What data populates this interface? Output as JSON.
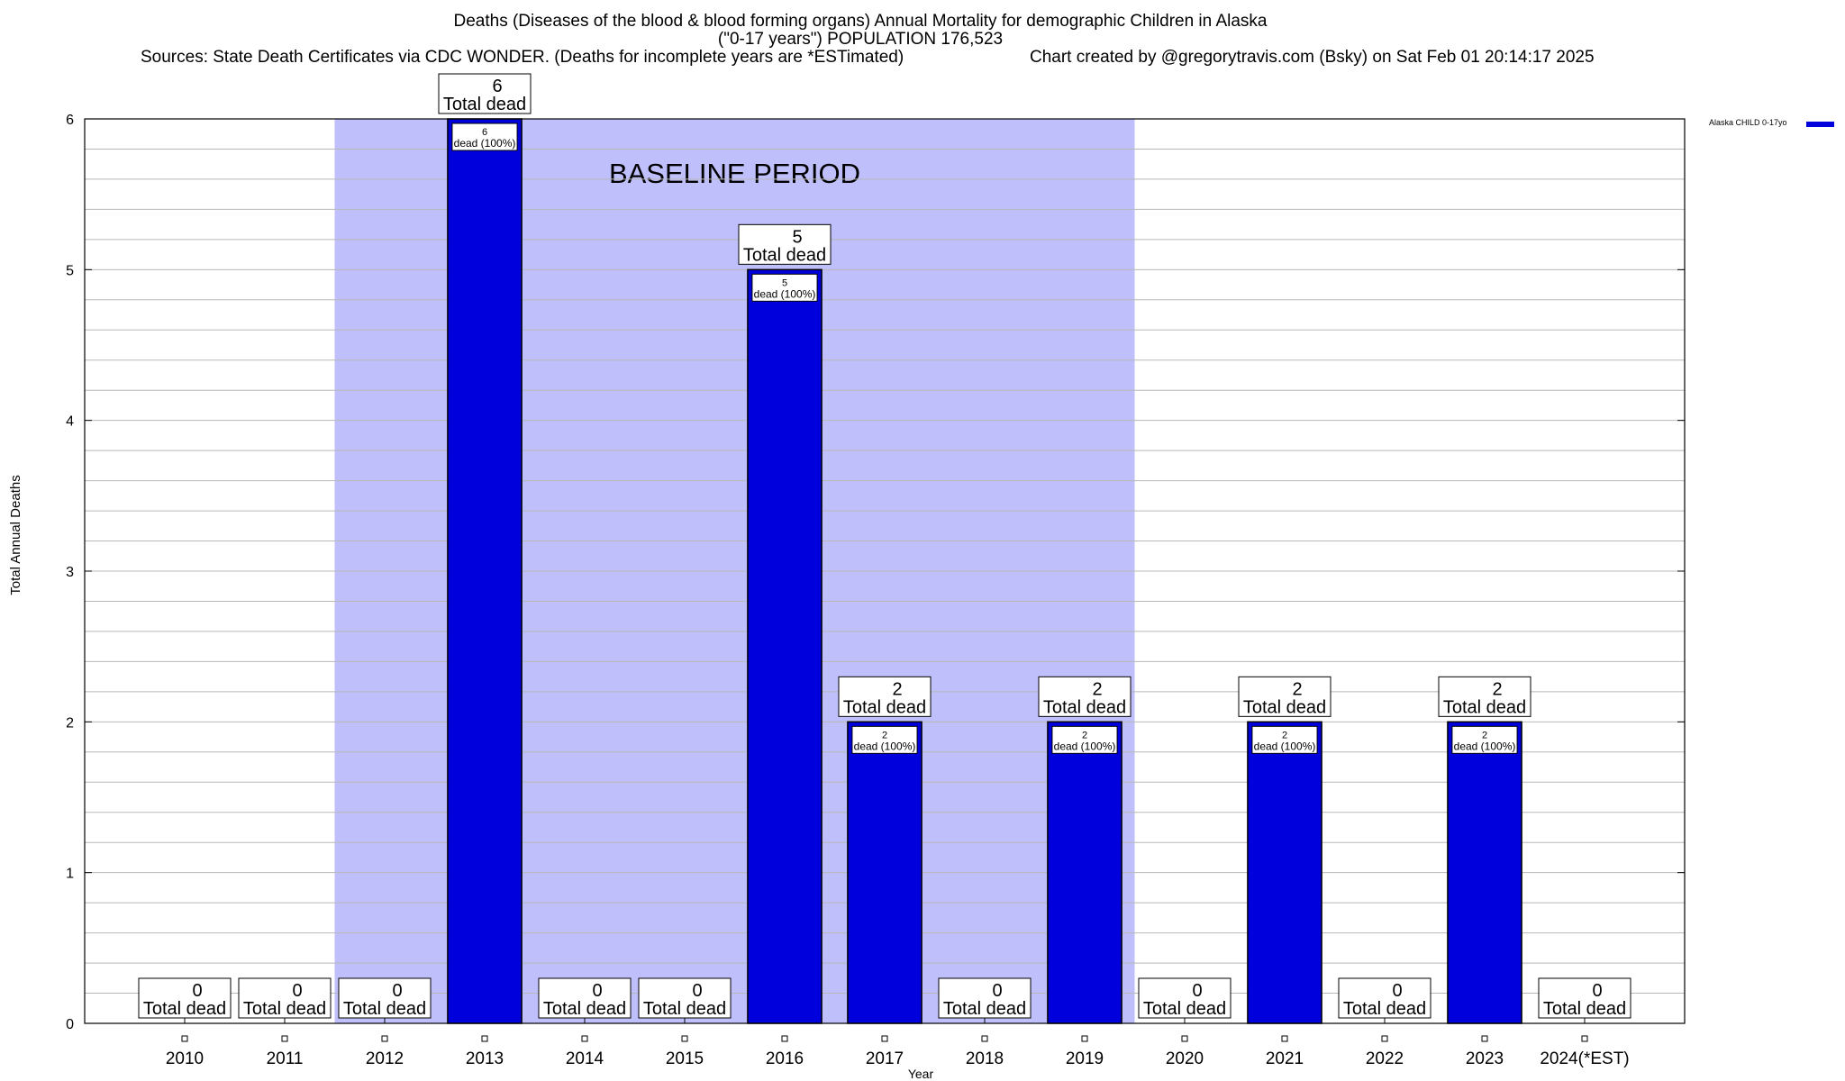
{
  "header": {
    "title_line1": "Deaths (Diseases of the blood & blood forming organs) Annual Mortality for demographic Children in Alaska",
    "title_line2": "(\"0-17 years\") POPULATION 176,523",
    "sources": "Sources: State Death Certificates via CDC WONDER. (Deaths for incomplete years are *ESTimated)",
    "credit": "Chart created by @gregorytravis.com (Bsky) on Sat Feb 01 20:14:17 2025"
  },
  "legend": {
    "label": "Alaska CHILD 0-17yo",
    "color": "#0000dd"
  },
  "colors": {
    "bar": "#0000dd",
    "bar_edge": "#000000",
    "baseline_shade": "#bfbffb"
  },
  "chart_data": {
    "type": "bar",
    "xlabel": "Year",
    "ylabel": "Total Annual Deaths",
    "ylim": [
      0,
      6
    ],
    "yticks": [
      0,
      1,
      2,
      3,
      4,
      5,
      6
    ],
    "categories": [
      "2010",
      "2011",
      "2012",
      "2013",
      "2014",
      "2015",
      "2016",
      "2017",
      "2018",
      "2019",
      "2020",
      "2021",
      "2022",
      "2023",
      "2024(*EST)"
    ],
    "series": [
      {
        "name": "Alaska CHILD 0-17yo",
        "values": [
          0,
          0,
          0,
          6,
          0,
          0,
          5,
          2,
          0,
          2,
          0,
          2,
          0,
          2,
          0
        ]
      }
    ],
    "total_label_suffix": "Total dead",
    "inner_labels": [
      "",
      "",
      "",
      "6\ndead (100%)",
      "",
      "",
      "5\ndead (100%)",
      "2\ndead (100%)",
      "",
      "2\ndead (100%)",
      "",
      "2\ndead (100%)",
      "",
      "2\ndead (100%)",
      ""
    ],
    "baseline": {
      "label": "BASELINE PERIOD",
      "from": "2012",
      "to": "2019"
    },
    "grid": "horizontal"
  }
}
